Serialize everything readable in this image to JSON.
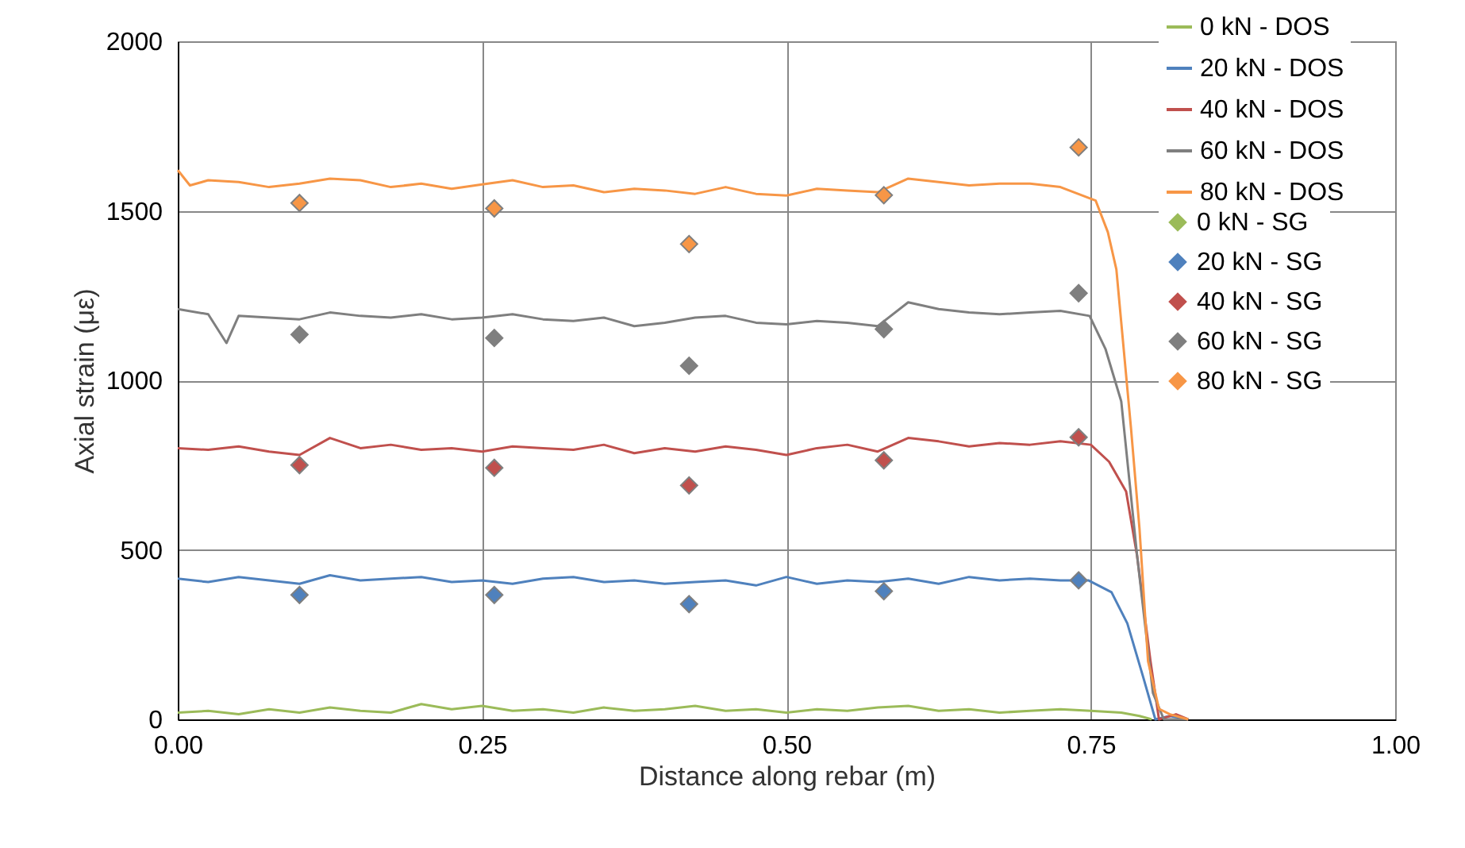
{
  "chart_data": {
    "type": "line",
    "xlabel": "Distance along rebar (m)",
    "ylabel": "Axial strain (με)",
    "xlim": [
      0,
      1
    ],
    "xticks": [
      {
        "value": 0,
        "label": "0.00"
      },
      {
        "value": 0.25,
        "label": "0.25"
      },
      {
        "value": 0.5,
        "label": "0.50"
      },
      {
        "value": 0.75,
        "label": "0.75"
      },
      {
        "value": 1,
        "label": "1.00"
      }
    ],
    "ylim": [
      0,
      2000
    ],
    "yticks": [
      0,
      500,
      1000,
      1500,
      2000
    ],
    "grid": true,
    "legend": "top right",
    "series": [
      {
        "name": "0 kN - DOS",
        "marker": "none",
        "color": "#9bbb59",
        "x": [
          0,
          0.025,
          0.05,
          0.075,
          0.1,
          0.125,
          0.15,
          0.175,
          0.2,
          0.225,
          0.25,
          0.275,
          0.3,
          0.325,
          0.35,
          0.375,
          0.4,
          0.425,
          0.45,
          0.475,
          0.5,
          0.525,
          0.55,
          0.575,
          0.6,
          0.625,
          0.65,
          0.675,
          0.7,
          0.725,
          0.75,
          0.775,
          0.79,
          0.8
        ],
        "values": [
          20,
          25,
          15,
          30,
          20,
          35,
          25,
          20,
          45,
          30,
          40,
          25,
          30,
          20,
          35,
          25,
          30,
          40,
          25,
          30,
          20,
          30,
          25,
          35,
          40,
          25,
          30,
          20,
          25,
          30,
          25,
          20,
          10,
          0
        ]
      },
      {
        "name": "20 kN - DOS",
        "marker": "none",
        "color": "#4f81bd",
        "x": [
          0,
          0.025,
          0.05,
          0.075,
          0.1,
          0.125,
          0.15,
          0.175,
          0.2,
          0.225,
          0.25,
          0.275,
          0.3,
          0.325,
          0.35,
          0.375,
          0.4,
          0.425,
          0.45,
          0.475,
          0.5,
          0.525,
          0.55,
          0.575,
          0.6,
          0.625,
          0.65,
          0.675,
          0.7,
          0.725,
          0.748,
          0.767,
          0.78,
          0.793,
          0.803,
          0.815,
          0.83
        ],
        "values": [
          415,
          405,
          420,
          410,
          400,
          425,
          410,
          415,
          420,
          405,
          410,
          400,
          415,
          420,
          405,
          410,
          400,
          405,
          410,
          395,
          420,
          400,
          410,
          405,
          415,
          400,
          420,
          410,
          415,
          410,
          410,
          375,
          283,
          125,
          0,
          10,
          0
        ]
      },
      {
        "name": "40 kN - DOS",
        "marker": "none",
        "color": "#c0504d",
        "x": [
          0,
          0.025,
          0.05,
          0.075,
          0.1,
          0.125,
          0.15,
          0.175,
          0.2,
          0.225,
          0.25,
          0.275,
          0.3,
          0.325,
          0.35,
          0.375,
          0.4,
          0.425,
          0.45,
          0.475,
          0.5,
          0.525,
          0.55,
          0.575,
          0.6,
          0.625,
          0.65,
          0.675,
          0.7,
          0.725,
          0.75,
          0.765,
          0.779,
          0.788,
          0.799,
          0.806,
          0.82,
          0.83
        ],
        "values": [
          800,
          795,
          805,
          790,
          780,
          830,
          800,
          810,
          795,
          800,
          790,
          805,
          800,
          795,
          810,
          785,
          800,
          790,
          805,
          795,
          780,
          800,
          810,
          790,
          830,
          820,
          805,
          815,
          810,
          820,
          810,
          760,
          672,
          483,
          172,
          0,
          15,
          0
        ]
      },
      {
        "name": "60 kN - DOS",
        "marker": "none",
        "color": "#7f7f7f",
        "x": [
          0,
          0.025,
          0.04,
          0.05,
          0.075,
          0.1,
          0.125,
          0.15,
          0.175,
          0.2,
          0.225,
          0.25,
          0.275,
          0.3,
          0.325,
          0.35,
          0.375,
          0.4,
          0.425,
          0.45,
          0.475,
          0.5,
          0.525,
          0.55,
          0.575,
          0.6,
          0.625,
          0.65,
          0.675,
          0.7,
          0.725,
          0.749,
          0.762,
          0.775,
          0.788,
          0.801,
          0.81,
          0.83
        ],
        "values": [
          1210,
          1195,
          1110,
          1190,
          1185,
          1180,
          1200,
          1190,
          1185,
          1195,
          1180,
          1185,
          1195,
          1180,
          1175,
          1185,
          1160,
          1170,
          1185,
          1190,
          1170,
          1165,
          1175,
          1170,
          1160,
          1230,
          1210,
          1200,
          1195,
          1200,
          1205,
          1190,
          1093,
          938,
          484,
          78,
          0,
          0
        ]
      },
      {
        "name": "80 kN - DOS",
        "marker": "none",
        "color": "#f79646",
        "x": [
          0,
          0.01,
          0.025,
          0.05,
          0.075,
          0.1,
          0.125,
          0.15,
          0.175,
          0.2,
          0.225,
          0.25,
          0.275,
          0.3,
          0.325,
          0.35,
          0.375,
          0.4,
          0.425,
          0.45,
          0.475,
          0.5,
          0.525,
          0.55,
          0.575,
          0.6,
          0.625,
          0.65,
          0.675,
          0.7,
          0.725,
          0.754,
          0.764,
          0.771,
          0.777,
          0.783,
          0.79,
          0.797,
          0.806,
          0.815,
          0.83
        ],
        "values": [
          1620,
          1575,
          1590,
          1585,
          1570,
          1580,
          1595,
          1590,
          1570,
          1580,
          1565,
          1578,
          1590,
          1570,
          1575,
          1555,
          1565,
          1560,
          1550,
          1570,
          1550,
          1545,
          1565,
          1560,
          1555,
          1595,
          1585,
          1575,
          1580,
          1580,
          1570,
          1530,
          1437,
          1327,
          1093,
          859,
          562,
          172,
          31,
          15,
          0
        ]
      },
      {
        "name": "0 kN - SG",
        "type": "scatter",
        "marker": "diamond",
        "color": "#9bbb59"
      },
      {
        "name": "20 kN - SG",
        "type": "scatter",
        "marker": "diamond",
        "color": "#4f81bd",
        "x": [
          0.1,
          0.26,
          0.42,
          0.58,
          0.74
        ],
        "values": [
          367,
          367,
          340,
          378,
          410
        ]
      },
      {
        "name": "40 kN - SG",
        "type": "scatter",
        "marker": "diamond",
        "color": "#c0504d",
        "x": [
          0.1,
          0.26,
          0.42,
          0.58,
          0.74
        ],
        "values": [
          750,
          742,
          690,
          764,
          832
        ]
      },
      {
        "name": "60 kN - SG",
        "type": "scatter",
        "marker": "diamond",
        "color": "#7f7f7f",
        "x": [
          0.1,
          0.26,
          0.42,
          0.58,
          0.74
        ],
        "values": [
          1135,
          1125,
          1043,
          1151,
          1257
        ]
      },
      {
        "name": "80 kN - SG",
        "type": "scatter",
        "marker": "diamond",
        "color": "#f79646",
        "x": [
          0.1,
          0.26,
          0.42,
          0.58,
          0.74
        ],
        "values": [
          1523,
          1507,
          1402,
          1546,
          1687
        ]
      }
    ]
  }
}
